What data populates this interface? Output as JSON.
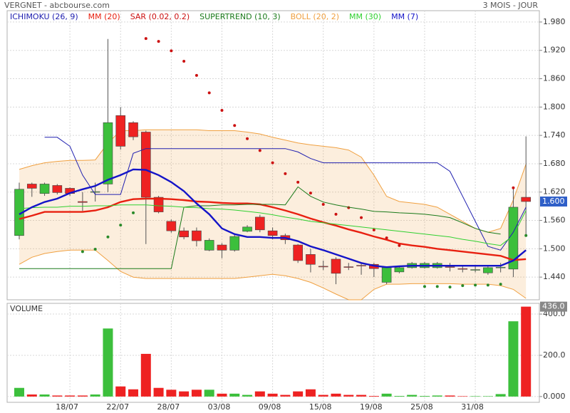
{
  "chart_data": [
    {
      "type": "candlestick",
      "title": "VERGNET - abcbourse.com",
      "period": "3 MOIS - JOUR",
      "categories": [
        null,
        null,
        null,
        null,
        "18/07",
        null,
        null,
        null,
        "22/07",
        null,
        null,
        null,
        "28/07",
        null,
        null,
        null,
        "03/08",
        null,
        null,
        null,
        "09/08",
        null,
        null,
        null,
        "15/08",
        null,
        null,
        null,
        "19/08",
        null,
        null,
        null,
        "25/08",
        null,
        null,
        null,
        "31/08",
        null,
        null,
        null,
        null
      ],
      "open": [
        1.528,
        1.637,
        1.617,
        1.634,
        1.628,
        1.6,
        1.62,
        1.637,
        1.782,
        1.767,
        1.747,
        1.609,
        1.558,
        1.538,
        1.538,
        1.497,
        1.508,
        1.497,
        1.537,
        1.567,
        1.538,
        1.528,
        1.508,
        1.488,
        1.463,
        1.478,
        1.462,
        1.465,
        1.467,
        1.429,
        1.451,
        1.46,
        1.46,
        1.46,
        1.462,
        1.458,
        1.455,
        1.449,
        1.46,
        1.457,
        1.609
      ],
      "high": [
        1.64,
        1.64,
        1.64,
        1.637,
        1.63,
        1.62,
        1.64,
        1.944,
        1.8,
        1.77,
        1.75,
        1.612,
        1.562,
        1.545,
        1.545,
        1.522,
        1.512,
        1.53,
        1.55,
        1.572,
        1.545,
        1.532,
        1.51,
        1.5,
        1.475,
        1.482,
        1.47,
        1.47,
        1.47,
        1.462,
        1.463,
        1.472,
        1.472,
        1.472,
        1.47,
        1.465,
        1.465,
        1.463,
        1.47,
        1.63,
        1.738
      ],
      "low": [
        1.52,
        1.61,
        1.612,
        1.615,
        1.612,
        1.58,
        1.6,
        1.62,
        1.71,
        1.73,
        1.51,
        1.575,
        1.534,
        1.52,
        1.505,
        1.495,
        1.48,
        1.494,
        1.535,
        1.535,
        1.52,
        1.51,
        1.47,
        1.45,
        1.455,
        1.425,
        1.455,
        1.445,
        1.44,
        1.425,
        1.448,
        1.458,
        1.458,
        1.458,
        1.452,
        1.45,
        1.45,
        1.445,
        1.45,
        1.44,
        1.528
      ],
      "close": [
        1.626,
        1.628,
        1.637,
        1.619,
        1.617,
        1.598,
        1.621,
        1.767,
        1.717,
        1.737,
        1.609,
        1.578,
        1.538,
        1.525,
        1.517,
        1.518,
        1.497,
        1.526,
        1.546,
        1.54,
        1.528,
        1.519,
        1.475,
        1.467,
        1.462,
        1.448,
        1.461,
        1.464,
        1.458,
        1.46,
        1.46,
        1.469,
        1.469,
        1.469,
        1.461,
        1.457,
        1.456,
        1.46,
        1.461,
        1.588,
        1.6
      ],
      "up_color": "#3cbf3c",
      "down_color": "#ee2222",
      "ylim": [
        1.392,
        2.004
      ],
      "yticks": [
        {
          "value": 1.98,
          "label": "1.980"
        },
        {
          "value": 1.92,
          "label": "1.920"
        },
        {
          "value": 1.86,
          "label": "1.860"
        },
        {
          "value": 1.8,
          "label": "1.800"
        },
        {
          "value": 1.74,
          "label": "1.740"
        },
        {
          "value": 1.68,
          "label": "1.680"
        },
        {
          "value": 1.62,
          "label": "1.620"
        },
        {
          "value": 1.56,
          "label": "1.560"
        },
        {
          "value": 1.5,
          "label": "1.500"
        },
        {
          "value": 1.44,
          "label": "1.440"
        }
      ],
      "last_value": {
        "value": 1.6,
        "label": "1.600"
      },
      "grid": true,
      "series": [
        {
          "name": "ICHIMOKU (26, 9)",
          "color": "#2020b0",
          "style": "line",
          "values": [
            null,
            null,
            1.736,
            1.736,
            1.717,
            1.656,
            1.615,
            1.615,
            1.615,
            1.702,
            1.712,
            1.712,
            1.712,
            1.712,
            1.712,
            1.712,
            1.712,
            1.712,
            1.712,
            1.712,
            1.712,
            1.712,
            1.705,
            1.691,
            1.682,
            1.682,
            1.682,
            1.682,
            1.682,
            1.682,
            1.682,
            1.682,
            1.682,
            1.682,
            1.664,
            1.611,
            1.558,
            1.505,
            1.497,
            1.535,
            1.588
          ]
        },
        {
          "name": "MM (20)",
          "color": "#e82010",
          "style": "thick",
          "values": [
            1.563,
            1.57,
            1.578,
            1.578,
            1.578,
            1.578,
            1.581,
            1.588,
            1.599,
            1.605,
            1.606,
            1.606,
            1.605,
            1.603,
            1.6,
            1.599,
            1.597,
            1.596,
            1.596,
            1.594,
            1.588,
            1.581,
            1.573,
            1.564,
            1.556,
            1.549,
            1.541,
            1.534,
            1.526,
            1.519,
            1.511,
            1.507,
            1.504,
            1.5,
            1.497,
            1.494,
            1.491,
            1.488,
            1.485,
            1.476,
            1.478
          ]
        },
        {
          "name": "SAR (0.02, 0.2)",
          "color": "#cc1010",
          "style": "dots",
          "below_color": "#2a8a2a",
          "values": [
            null,
            null,
            null,
            null,
            null,
            1.494,
            1.499,
            1.525,
            1.55,
            1.576,
            1.945,
            1.939,
            1.919,
            1.897,
            1.867,
            1.83,
            1.793,
            1.761,
            1.733,
            1.708,
            1.682,
            1.659,
            1.641,
            1.618,
            1.594,
            1.573,
            1.587,
            1.566,
            1.54,
            1.523,
            1.507,
            null,
            1.42,
            1.42,
            1.419,
            1.422,
            1.423,
            1.423,
            1.425,
            1.629,
            1.528
          ]
        },
        {
          "name": "SUPERTREND (10, 3)",
          "color": "#1a7a1a",
          "style": "line",
          "values": [
            1.458,
            1.458,
            1.458,
            1.458,
            1.458,
            1.458,
            1.458,
            1.458,
            1.458,
            1.458,
            1.458,
            1.458,
            1.458,
            1.588,
            1.591,
            1.591,
            1.593,
            1.593,
            1.594,
            1.594,
            1.594,
            1.593,
            1.631,
            1.611,
            1.599,
            1.593,
            1.588,
            1.584,
            1.579,
            1.578,
            1.576,
            1.575,
            1.573,
            1.57,
            1.566,
            1.555,
            1.543,
            1.535,
            1.531,
            null,
            null
          ]
        },
        {
          "name": "BOLL (20, 2)",
          "color": "#f0a040",
          "style": "band",
          "values": [
            1.668,
            1.676,
            1.682,
            1.685,
            1.687,
            1.687,
            1.688,
            1.724,
            1.75,
            1.75,
            1.752,
            1.752,
            1.752,
            1.752,
            1.752,
            1.75,
            1.75,
            1.75,
            1.747,
            1.743,
            1.736,
            1.73,
            1.724,
            1.72,
            1.717,
            1.714,
            1.709,
            1.694,
            1.656,
            1.611,
            1.6,
            1.597,
            1.594,
            1.588,
            1.573,
            1.558,
            1.543,
            1.535,
            1.543,
            1.603,
            1.679
          ],
          "lower": [
            1.467,
            1.482,
            1.49,
            1.494,
            1.497,
            1.497,
            1.497,
            1.475,
            1.452,
            1.44,
            1.437,
            1.437,
            1.437,
            1.437,
            1.437,
            1.437,
            1.437,
            1.437,
            1.44,
            1.443,
            1.446,
            1.443,
            1.437,
            1.429,
            1.417,
            1.404,
            1.392,
            1.392,
            1.414,
            1.425,
            1.425,
            1.426,
            1.426,
            1.426,
            1.426,
            1.425,
            1.425,
            1.425,
            1.422,
            1.414,
            1.395
          ]
        },
        {
          "name": "MM (30)",
          "color": "#30d030",
          "style": "line",
          "values": [
            1.585,
            1.587,
            1.588,
            1.588,
            1.59,
            1.59,
            1.591,
            1.591,
            1.593,
            1.593,
            1.593,
            1.591,
            1.59,
            1.588,
            1.587,
            1.585,
            1.584,
            1.582,
            1.579,
            1.576,
            1.572,
            1.567,
            1.563,
            1.558,
            1.555,
            1.552,
            1.549,
            1.546,
            1.543,
            1.54,
            1.537,
            1.534,
            1.531,
            1.528,
            1.525,
            1.52,
            1.516,
            1.511,
            1.507,
            1.528,
            1.581
          ]
        },
        {
          "name": "MM (7)",
          "color": "#1414c8",
          "style": "thick",
          "values": [
            1.573,
            1.588,
            1.599,
            1.606,
            1.618,
            1.626,
            1.633,
            1.646,
            1.656,
            1.668,
            1.667,
            1.656,
            1.641,
            1.622,
            1.596,
            1.573,
            1.543,
            1.531,
            1.525,
            1.525,
            1.523,
            1.523,
            1.516,
            1.505,
            1.497,
            1.488,
            1.479,
            1.47,
            1.464,
            1.461,
            1.463,
            1.464,
            1.464,
            1.464,
            1.464,
            1.464,
            1.464,
            1.464,
            1.464,
            1.475,
            1.497
          ]
        }
      ]
    },
    {
      "type": "volume",
      "title": "VOLUME",
      "values": [
        42,
        10,
        10,
        5,
        5,
        5,
        10,
        330,
        49,
        35,
        207,
        42,
        33,
        25,
        33,
        33,
        14,
        14,
        8,
        25,
        14,
        8,
        25,
        35,
        8,
        14,
        8,
        8,
        3,
        14,
        3,
        8,
        3,
        5,
        5,
        2,
        2,
        2,
        12,
        365,
        436
      ],
      "ylim": [
        -28,
        452
      ],
      "yticks": [
        {
          "value": 0,
          "label": "0.000"
        },
        {
          "value": 200,
          "label": "200.0"
        },
        {
          "value": 400,
          "label": "400.0"
        }
      ],
      "last_value": {
        "value": 436,
        "label": "436.0"
      },
      "grid": true
    }
  ]
}
